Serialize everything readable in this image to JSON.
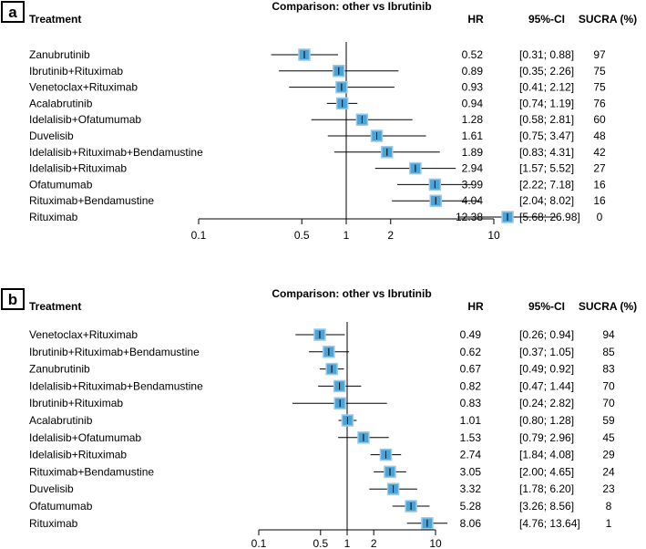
{
  "chart_data": [
    {
      "type": "forest",
      "panel": "a",
      "title": "Comparison: other vs  Ibrutinib",
      "headers": {
        "treatment": "Treatment",
        "hr": "HR",
        "ci": "95%-CI",
        "sucra": "SUCRA (%)"
      },
      "x_scale": "log",
      "reference_line": 1,
      "xlim": [
        0.1,
        20
      ],
      "xticks": [
        "0.1",
        "0.5",
        "1",
        "2",
        "10"
      ],
      "rows": [
        {
          "treatment": "Zanubrutinib",
          "hr": 0.52,
          "lo": 0.31,
          "hi": 0.88,
          "hr_text": "0.52",
          "ci_text": "[0.31;  0.88]",
          "sucra": "97"
        },
        {
          "treatment": "Ibrutinib+Rituximab",
          "hr": 0.89,
          "lo": 0.35,
          "hi": 2.26,
          "hr_text": "0.89",
          "ci_text": "[0.35;  2.26]",
          "sucra": "75"
        },
        {
          "treatment": "Venetoclax+Rituximab",
          "hr": 0.93,
          "lo": 0.41,
          "hi": 2.12,
          "hr_text": "0.93",
          "ci_text": "[0.41;  2.12]",
          "sucra": "75"
        },
        {
          "treatment": "Acalabrutinib",
          "hr": 0.94,
          "lo": 0.74,
          "hi": 1.19,
          "hr_text": "0.94",
          "ci_text": "[0.74;  1.19]",
          "sucra": "76"
        },
        {
          "treatment": "Idelalisib+Ofatumumab",
          "hr": 1.28,
          "lo": 0.58,
          "hi": 2.81,
          "hr_text": "1.28",
          "ci_text": "[0.58;  2.81]",
          "sucra": "60"
        },
        {
          "treatment": "Duvelisib",
          "hr": 1.61,
          "lo": 0.75,
          "hi": 3.47,
          "hr_text": "1.61",
          "ci_text": "[0.75;  3.47]",
          "sucra": "48"
        },
        {
          "treatment": "Idelalisib+Rituximab+Bendamustine",
          "hr": 1.89,
          "lo": 0.83,
          "hi": 4.31,
          "hr_text": "1.89",
          "ci_text": "[0.83;  4.31]",
          "sucra": "42"
        },
        {
          "treatment": "Idelalisib+Rituximab",
          "hr": 2.94,
          "lo": 1.57,
          "hi": 5.52,
          "hr_text": "2.94",
          "ci_text": "[1.57;  5.52]",
          "sucra": "27"
        },
        {
          "treatment": "Ofatumumab",
          "hr": 3.99,
          "lo": 2.22,
          "hi": 7.18,
          "hr_text": "3.99",
          "ci_text": "[2.22;  7.18]",
          "sucra": "16"
        },
        {
          "treatment": "Rituximab+Bendamustine",
          "hr": 4.04,
          "lo": 2.04,
          "hi": 8.02,
          "hr_text": "4.04",
          "ci_text": "[2.04;  8.02]",
          "sucra": "16"
        },
        {
          "treatment": "Rituximab",
          "hr": 12.38,
          "lo": 5.68,
          "hi": 26.98,
          "hr_text": "12.38",
          "ci_text": "[5.68; 26.98]",
          "sucra": "0"
        }
      ]
    },
    {
      "type": "forest",
      "panel": "b",
      "title": "Comparison: other vs  Ibrutinib",
      "headers": {
        "treatment": "Treatment",
        "hr": "HR",
        "ci": "95%-CI",
        "sucra": "SUCRA (%)"
      },
      "x_scale": "log",
      "reference_line": 1,
      "xlim": [
        0.1,
        10
      ],
      "xticks": [
        "0.1",
        "0.5",
        "1",
        "2",
        "10"
      ],
      "rows": [
        {
          "treatment": "Venetoclax+Rituximab",
          "hr": 0.49,
          "lo": 0.26,
          "hi": 0.94,
          "hr_text": "0.49",
          "ci_text": "[0.26;  0.94]",
          "sucra": "94"
        },
        {
          "treatment": "Ibrutinib+Rituximab+Bendamustine",
          "hr": 0.62,
          "lo": 0.37,
          "hi": 1.05,
          "hr_text": "0.62",
          "ci_text": "[0.37;  1.05]",
          "sucra": "85"
        },
        {
          "treatment": "Zanubrutinib",
          "hr": 0.67,
          "lo": 0.49,
          "hi": 0.92,
          "hr_text": "0.67",
          "ci_text": "[0.49;  0.92]",
          "sucra": "83"
        },
        {
          "treatment": "Idelalisib+Rituximab+Bendamustine",
          "hr": 0.82,
          "lo": 0.47,
          "hi": 1.44,
          "hr_text": "0.82",
          "ci_text": "[0.47;  1.44]",
          "sucra": "70"
        },
        {
          "treatment": "Ibrutinib+Rituximab",
          "hr": 0.83,
          "lo": 0.24,
          "hi": 2.82,
          "hr_text": "0.83",
          "ci_text": "[0.24;  2.82]",
          "sucra": "70"
        },
        {
          "treatment": "Acalabrutinib",
          "hr": 1.01,
          "lo": 0.8,
          "hi": 1.28,
          "hr_text": "1.01",
          "ci_text": "[0.80;  1.28]",
          "sucra": "59"
        },
        {
          "treatment": "Idelalisib+Ofatumumab",
          "hr": 1.53,
          "lo": 0.79,
          "hi": 2.96,
          "hr_text": "1.53",
          "ci_text": "[0.79;  2.96]",
          "sucra": "45"
        },
        {
          "treatment": "Idelalisib+Rituximab",
          "hr": 2.74,
          "lo": 1.84,
          "hi": 4.08,
          "hr_text": "2.74",
          "ci_text": "[1.84;  4.08]",
          "sucra": "29"
        },
        {
          "treatment": "Rituximab+Bendamustine",
          "hr": 3.05,
          "lo": 2.0,
          "hi": 4.65,
          "hr_text": "3.05",
          "ci_text": "[2.00;  4.65]",
          "sucra": "24"
        },
        {
          "treatment": "Duvelisib",
          "hr": 3.32,
          "lo": 1.78,
          "hi": 6.2,
          "hr_text": "3.32",
          "ci_text": "[1.78;  6.20]",
          "sucra": "23"
        },
        {
          "treatment": "Ofatumumab",
          "hr": 5.28,
          "lo": 3.26,
          "hi": 8.56,
          "hr_text": "5.28",
          "ci_text": "[3.26;  8.56]",
          "sucra": "8"
        },
        {
          "treatment": "Rituximab",
          "hr": 8.06,
          "lo": 4.76,
          "hi": 13.64,
          "hr_text": "8.06",
          "ci_text": "[4.76; 13.64]",
          "sucra": "1"
        }
      ]
    }
  ],
  "colors": {
    "box": "#4ba3d6",
    "box_edge": "#9ccbe8",
    "line": "#000000"
  }
}
